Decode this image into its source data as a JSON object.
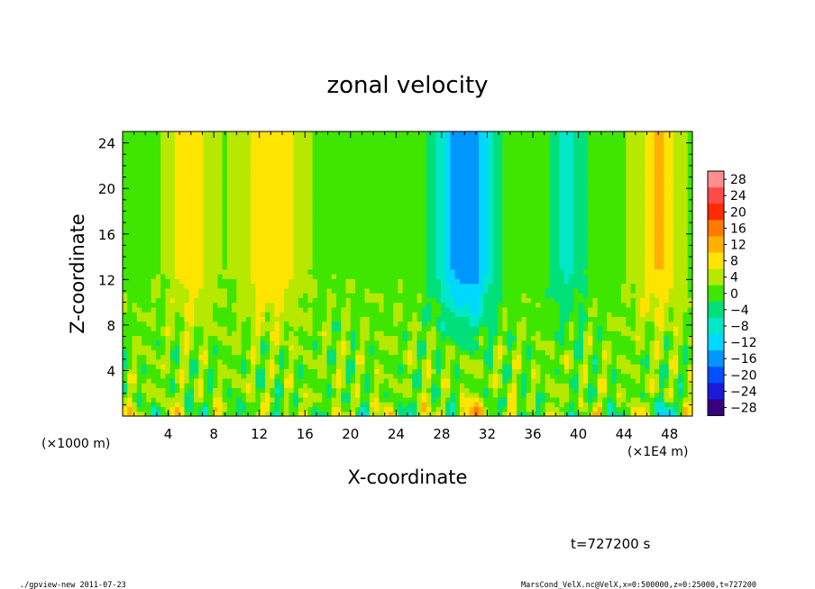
{
  "chart_data": {
    "type": "heatmap",
    "title": "zonal velocity",
    "xlabel": "X-coordinate",
    "ylabel": "Z-coordinate",
    "x_unit_left": "(×1000 m)",
    "x_unit_right": "(×1E4 m)",
    "xlim": [
      0,
      50
    ],
    "ylim": [
      0,
      25
    ],
    "x_ticks": [
      4,
      8,
      12,
      16,
      20,
      24,
      28,
      32,
      36,
      40,
      44,
      48
    ],
    "x_tick_labels": [
      "4",
      "8",
      "12",
      "16",
      "20",
      "24",
      "28",
      "32",
      "36",
      "40",
      "44",
      "48"
    ],
    "y_ticks": [
      4,
      8,
      12,
      16,
      20,
      24
    ],
    "y_tick_labels": [
      "4",
      "8",
      "12",
      "16",
      "20",
      "24"
    ],
    "colorbar": {
      "levels": [
        28,
        24,
        20,
        16,
        12,
        8,
        4,
        0,
        -4,
        -8,
        -12,
        -16,
        -20,
        -24,
        -28
      ],
      "labels": [
        "28",
        "24",
        "20",
        "16",
        "12",
        "8",
        "4",
        "0",
        "−4",
        "−8",
        "−12",
        "−16",
        "−20",
        "−24",
        "−28"
      ],
      "colors": [
        "#ff8f8f",
        "#ff4a4a",
        "#ff2a00",
        "#ff7c00",
        "#ffb000",
        "#ffe400",
        "#b6e800",
        "#3ee600",
        "#00e07a",
        "#00e8c8",
        "#00d8ff",
        "#0096ff",
        "#0050ff",
        "#1a1ad8",
        "#3a0080"
      ]
    },
    "u_features": {
      "upper_positive_columns_x": [
        6,
        12,
        14,
        47
      ],
      "upper_negative_columns_x": [
        29,
        31,
        39
      ],
      "strongest_positive": {
        "x": 31,
        "z": 0.5,
        "value": 20
      },
      "strongest_negative": {
        "x": 48,
        "z": 0.5,
        "value": -22
      }
    }
  },
  "annotation": {
    "time": "t=727200 s",
    "footer_left": "./gpview-new   2011-07-23",
    "footer_right": "MarsCond_VelX.nc@VelX,x=0:500000,z=0:25000,t=727200"
  }
}
